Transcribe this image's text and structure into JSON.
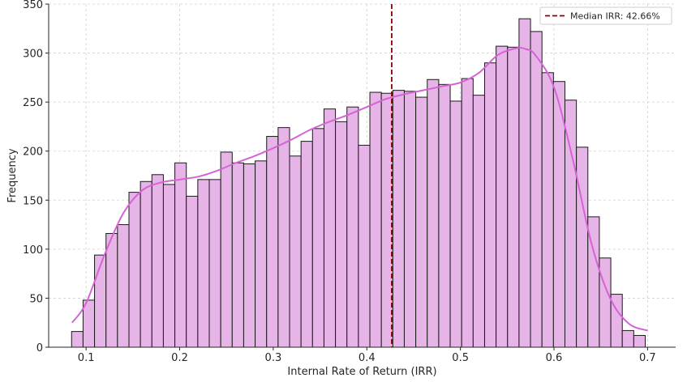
{
  "chart_data": {
    "type": "bar",
    "title": "",
    "xlabel": "Internal Rate of Return (IRR)",
    "ylabel": "Frequency",
    "xlim": [
      0.06,
      0.73
    ],
    "ylim": [
      0,
      350
    ],
    "xticks": [
      0.1,
      0.2,
      0.3,
      0.4,
      0.5,
      0.6,
      0.7
    ],
    "xtick_labels": [
      "0.1",
      "0.2",
      "0.3",
      "0.4",
      "0.5",
      "0.6",
      "0.7"
    ],
    "yticks": [
      0,
      50,
      100,
      150,
      200,
      250,
      300,
      350
    ],
    "ytick_labels": [
      "0",
      "50",
      "100",
      "150",
      "200",
      "250",
      "300",
      "350"
    ],
    "grid": true,
    "bin_start": 0.0845,
    "bin_width": 0.01226,
    "values": [
      16,
      48,
      94,
      116,
      125,
      158,
      169,
      176,
      166,
      188,
      154,
      171,
      171,
      199,
      188,
      187,
      190,
      215,
      224,
      195,
      210,
      223,
      243,
      230,
      245,
      206,
      260,
      259,
      262,
      261,
      255,
      273,
      268,
      251,
      274,
      257,
      290,
      307,
      306,
      335,
      322,
      280,
      271,
      252,
      204,
      133,
      91,
      54,
      17,
      12
    ],
    "kde": {
      "x": [
        0.085,
        0.1,
        0.12,
        0.14,
        0.16,
        0.18,
        0.2,
        0.22,
        0.24,
        0.26,
        0.28,
        0.3,
        0.32,
        0.34,
        0.36,
        0.38,
        0.4,
        0.42,
        0.44,
        0.46,
        0.48,
        0.5,
        0.52,
        0.54,
        0.56,
        0.57,
        0.58,
        0.6,
        0.62,
        0.64,
        0.66,
        0.68,
        0.7
      ],
      "y": [
        25,
        45,
        95,
        137,
        160,
        168,
        171,
        174,
        180,
        188,
        195,
        203,
        212,
        222,
        230,
        237,
        245,
        253,
        258,
        262,
        266,
        270,
        280,
        298,
        305,
        304,
        298,
        265,
        192,
        106,
        50,
        24,
        17
      ]
    },
    "median": {
      "value": 0.4266,
      "label": "Median IRR: 42.66%"
    },
    "legend_position": "top-right",
    "colors": {
      "bar_fill": "#e6b4e6",
      "bar_edge": "#1a1a1a",
      "kde": "#d663d6",
      "median": "#8b0000",
      "grid": "#d0d0d0",
      "axis": "#262626"
    }
  }
}
